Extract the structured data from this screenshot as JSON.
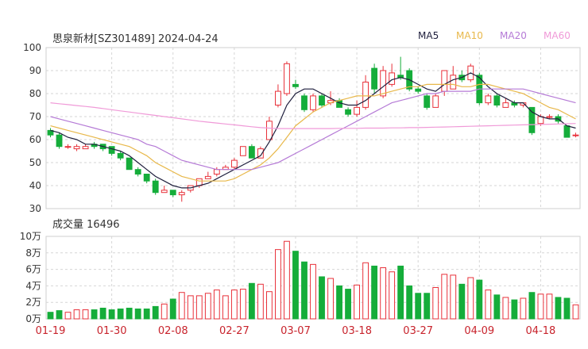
{
  "chart_data": {
    "type": "candlestick",
    "title": "思泉新材[SZ301489] 2024-04-24",
    "legend": [
      {
        "name": "MA5",
        "color": "#1f1f3d"
      },
      {
        "name": "MA10",
        "color": "#e8b84a"
      },
      {
        "name": "MA20",
        "color": "#b57ad6"
      },
      {
        "name": "MA60",
        "color": "#f09ad8"
      }
    ],
    "price_axis": {
      "min": 30,
      "max": 100,
      "ticks": [
        100,
        90,
        80,
        70,
        60,
        50,
        40,
        30
      ]
    },
    "volume_axis": {
      "min": 0,
      "max": 10,
      "unit": "万",
      "ticks": [
        "10万",
        "8万",
        "6万",
        "4万",
        "2万",
        "0万"
      ]
    },
    "volume_title": "成交量 16496",
    "x_labels": [
      {
        "label": "01-19",
        "index": 0
      },
      {
        "label": "01-30",
        "index": 7
      },
      {
        "label": "02-08",
        "index": 14
      },
      {
        "label": "02-27",
        "index": 21
      },
      {
        "label": "03-07",
        "index": 28
      },
      {
        "label": "03-18",
        "index": 35
      },
      {
        "label": "03-27",
        "index": 42
      },
      {
        "label": "04-09",
        "index": 49
      },
      {
        "label": "04-18",
        "index": 56
      }
    ],
    "candles": [
      [
        64,
        62,
        65,
        61,
        0.8
      ],
      [
        62,
        57,
        63,
        56,
        1.0
      ],
      [
        57,
        57,
        58,
        56,
        0.8
      ],
      [
        56,
        57,
        58,
        55,
        1.1
      ],
      [
        56,
        57,
        58,
        56,
        1.1
      ],
      [
        58,
        57,
        59,
        56,
        1.1
      ],
      [
        58,
        56,
        58,
        55,
        1.3
      ],
      [
        57,
        54,
        57,
        53,
        1.1
      ],
      [
        54,
        52,
        55,
        51,
        1.2
      ],
      [
        52,
        47,
        52,
        47,
        1.3
      ],
      [
        47,
        45,
        48,
        44,
        1.2
      ],
      [
        45,
        42,
        45,
        41,
        1.2
      ],
      [
        42,
        37,
        43,
        36,
        1.5
      ],
      [
        37,
        38,
        40,
        37,
        1.8
      ],
      [
        38,
        36,
        38,
        35,
        2.4
      ],
      [
        36,
        37,
        38,
        33,
        3.2
      ],
      [
        38,
        40,
        40,
        37,
        2.8
      ],
      [
        40,
        43,
        43,
        39,
        2.8
      ],
      [
        43,
        44,
        46,
        43,
        3.1
      ],
      [
        45,
        47,
        48,
        44,
        3.5
      ],
      [
        47,
        48,
        49,
        47,
        2.8
      ],
      [
        48,
        51,
        52,
        47,
        3.5
      ],
      [
        53,
        57,
        57,
        53,
        3.6
      ],
      [
        57,
        52,
        58,
        52,
        4.3
      ],
      [
        52,
        56,
        57,
        52,
        4.2
      ],
      [
        60,
        68,
        70,
        60,
        3.3
      ],
      [
        75,
        81,
        84,
        74,
        8.4
      ],
      [
        80,
        93,
        94,
        79,
        9.4
      ],
      [
        84,
        83,
        86,
        82,
        8.2
      ],
      [
        79,
        73,
        80,
        72,
        6.9
      ],
      [
        73,
        79,
        80,
        72,
        6.6
      ],
      [
        79,
        75,
        80,
        74,
        5.1
      ],
      [
        76,
        77,
        81,
        75,
        4.9
      ],
      [
        77,
        74,
        78,
        74,
        4.0
      ],
      [
        73,
        71,
        74,
        70,
        3.6
      ],
      [
        71,
        74,
        77,
        70,
        4.1
      ],
      [
        74,
        85,
        88,
        73,
        6.8
      ],
      [
        91,
        82,
        93,
        80,
        6.4
      ],
      [
        79,
        90,
        92,
        78,
        6.2
      ],
      [
        84,
        89,
        93,
        83,
        5.7
      ],
      [
        88,
        87,
        96,
        86,
        6.4
      ],
      [
        90,
        82,
        91,
        81,
        4.0
      ],
      [
        82,
        81,
        83,
        80,
        3.1
      ],
      [
        79,
        74,
        80,
        73,
        3.1
      ],
      [
        74,
        79,
        80,
        74,
        3.8
      ],
      [
        81,
        90,
        90,
        79,
        5.4
      ],
      [
        82,
        88,
        92,
        82,
        5.3
      ],
      [
        88,
        86,
        90,
        85,
        4.2
      ],
      [
        86,
        92,
        93,
        85,
        5.0
      ],
      [
        88,
        76,
        89,
        75,
        4.7
      ],
      [
        76,
        79,
        80,
        75,
        3.5
      ],
      [
        79,
        75,
        80,
        74,
        2.9
      ],
      [
        74,
        76,
        78,
        74,
        2.6
      ],
      [
        76,
        75,
        77,
        74,
        2.3
      ],
      [
        75,
        76,
        76,
        74,
        2.5
      ],
      [
        74,
        63,
        74,
        62,
        3.2
      ],
      [
        67,
        70,
        71,
        66,
        3.0
      ],
      [
        70,
        70,
        71,
        69,
        3.0
      ],
      [
        70,
        68,
        71,
        67,
        2.6
      ],
      [
        66,
        61,
        66,
        61,
        2.5
      ],
      [
        62,
        62,
        63,
        61,
        1.7
      ]
    ],
    "ma": {
      "MA5": [
        64,
        63,
        61,
        60,
        58,
        58,
        57,
        56,
        55,
        53,
        50,
        47,
        44,
        42,
        40,
        39,
        39,
        40,
        41,
        43,
        45,
        47,
        49,
        51,
        53,
        59,
        66,
        75,
        80,
        82,
        82,
        80,
        78,
        76,
        75,
        75,
        77,
        80,
        83,
        86,
        87,
        86,
        84,
        82,
        81,
        84,
        86,
        87,
        89,
        87,
        83,
        80,
        78,
        76,
        76,
        72,
        70,
        69,
        69,
        66,
        65
      ],
      "MA10": [
        66,
        65,
        64,
        63,
        62,
        61,
        60,
        59,
        58,
        57,
        55,
        53,
        50,
        48,
        46,
        44,
        43,
        42,
        42,
        42,
        42,
        43,
        45,
        47,
        49,
        52,
        56,
        61,
        66,
        69,
        72,
        74,
        76,
        77,
        78,
        79,
        79,
        79,
        80,
        81,
        82,
        83,
        83,
        84,
        84,
        84,
        84,
        83,
        83,
        84,
        84,
        83,
        82,
        81,
        80,
        78,
        76,
        74,
        73,
        71,
        69
      ],
      "MA20": [
        70,
        69,
        68,
        67,
        66,
        65,
        64,
        63,
        62,
        61,
        60,
        58,
        57,
        55,
        53,
        51,
        50,
        49,
        48,
        47,
        47,
        47,
        47,
        47,
        48,
        49,
        50,
        52,
        54,
        56,
        58,
        60,
        62,
        64,
        66,
        68,
        70,
        72,
        74,
        76,
        77,
        78,
        79,
        80,
        80,
        81,
        81,
        81,
        81,
        82,
        82,
        82,
        82,
        82,
        82,
        81,
        80,
        79,
        78,
        77,
        76
      ],
      "MA60": [
        76,
        75.6,
        75.2,
        74.8,
        74.4,
        74,
        73.5,
        73,
        72.5,
        72,
        71.5,
        71,
        70.5,
        70,
        69.5,
        69,
        68.5,
        68,
        67.6,
        67.2,
        66.8,
        66.4,
        66,
        65.6,
        65.2,
        65,
        64.8,
        64.8,
        64.8,
        64.8,
        64.8,
        64.8,
        64.8,
        64.9,
        64.9,
        64.9,
        65,
        65,
        65,
        65.1,
        65.1,
        65.2,
        65.2,
        65.3,
        65.4,
        65.5,
        65.6,
        65.7,
        65.8,
        65.9,
        66,
        66.1,
        66.2,
        66.3,
        66.4,
        66.5,
        66.6,
        66.7,
        66.8,
        66.9,
        67
      ]
    }
  }
}
